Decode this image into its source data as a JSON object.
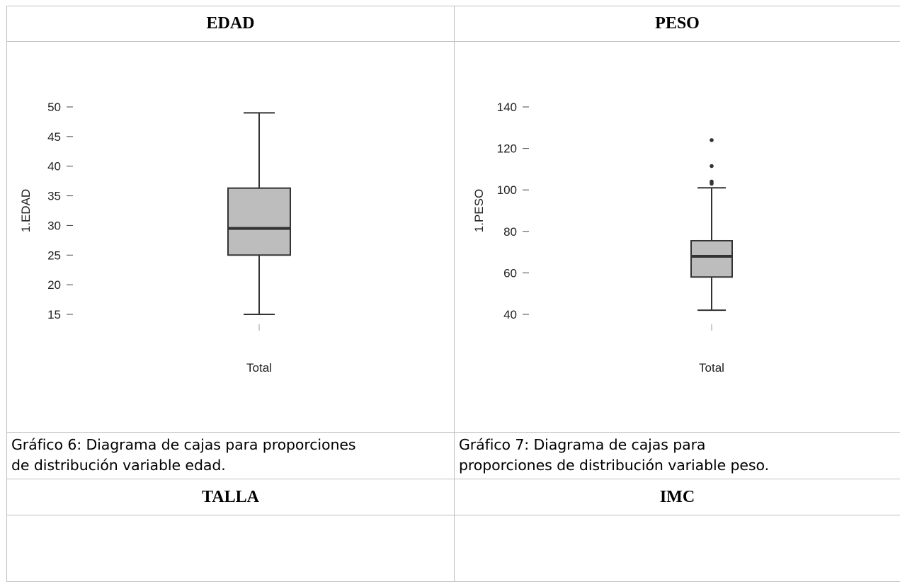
{
  "table": {
    "cells": {
      "edad_heading": "EDAD",
      "peso_heading": "PESO",
      "caption_6_line1": "Gráfico 6: Diagrama de cajas para proporciones",
      "caption_6_line2": "de distribución variable edad.",
      "caption_7_line1": "Gráfico 7:  Diagrama de cajas para",
      "caption_7_line2": "proporciones de distribución variable peso.",
      "talla_heading": "TALLA",
      "imc_heading": "IMC"
    }
  },
  "chart_data": [
    {
      "type": "boxplot",
      "ylabel": "1.EDAD",
      "categories": [
        "Total"
      ],
      "yticks": [
        15,
        20,
        25,
        30,
        35,
        40,
        45,
        50
      ],
      "ylim": [
        15,
        50
      ],
      "box": {
        "whisker_low": 15,
        "q1": 25,
        "median": 29.5,
        "q3": 36.3,
        "whisker_high": 49
      },
      "outliers": [],
      "colors": {
        "box_fill": "#bdbdbd",
        "line": "#333333",
        "median": "#333333"
      },
      "grid": false
    },
    {
      "type": "boxplot",
      "ylabel": "1.PESO",
      "categories": [
        "Total"
      ],
      "yticks": [
        40,
        60,
        80,
        100,
        120,
        140
      ],
      "ylim": [
        40,
        140
      ],
      "box": {
        "whisker_low": 42,
        "q1": 58,
        "median": 68,
        "q3": 75.5,
        "whisker_high": 101
      },
      "outliers": [
        103,
        104,
        111.5,
        124
      ],
      "colors": {
        "box_fill": "#bdbdbd",
        "line": "#333333",
        "median": "#333333"
      },
      "grid": false
    }
  ]
}
